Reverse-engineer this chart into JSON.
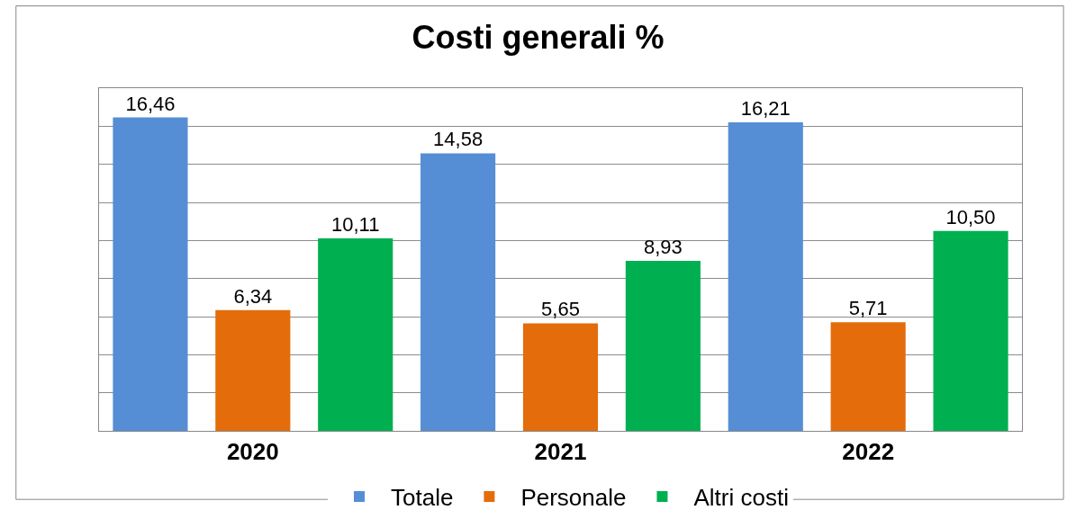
{
  "chart_data": {
    "type": "bar",
    "title": "Costi generali %",
    "categories": [
      "2020",
      "2021",
      "2022"
    ],
    "series": [
      {
        "name": "Totale",
        "color": "#558ed5",
        "values": [
          16.46,
          14.58,
          16.21
        ],
        "value_labels": [
          "16,46",
          "14,58",
          "16,21"
        ]
      },
      {
        "name": "Personale",
        "color": "#e46c0a",
        "values": [
          6.34,
          5.65,
          5.71
        ],
        "value_labels": [
          "6,34",
          "5,65",
          "5,71"
        ]
      },
      {
        "name": "Altri costi",
        "color": "#00b050",
        "values": [
          10.11,
          8.93,
          10.5
        ],
        "value_labels": [
          "10,11",
          "8,93",
          "10,50"
        ]
      }
    ],
    "ylim": [
      0,
      18
    ],
    "yticks": [
      {
        "value": 0,
        "label": null
      },
      {
        "value": 2,
        "label": null
      },
      {
        "value": 4,
        "label": null
      },
      {
        "value": 6,
        "label": null
      },
      {
        "value": 8,
        "label": null
      },
      {
        "value": 10,
        "label": null
      },
      {
        "value": 12,
        "label": null
      },
      {
        "value": 14,
        "label": null
      },
      {
        "value": 16,
        "label": null
      },
      {
        "value": 18,
        "label": null
      }
    ],
    "grid": "y",
    "legend": "bottom",
    "tick_labels": "x"
  }
}
